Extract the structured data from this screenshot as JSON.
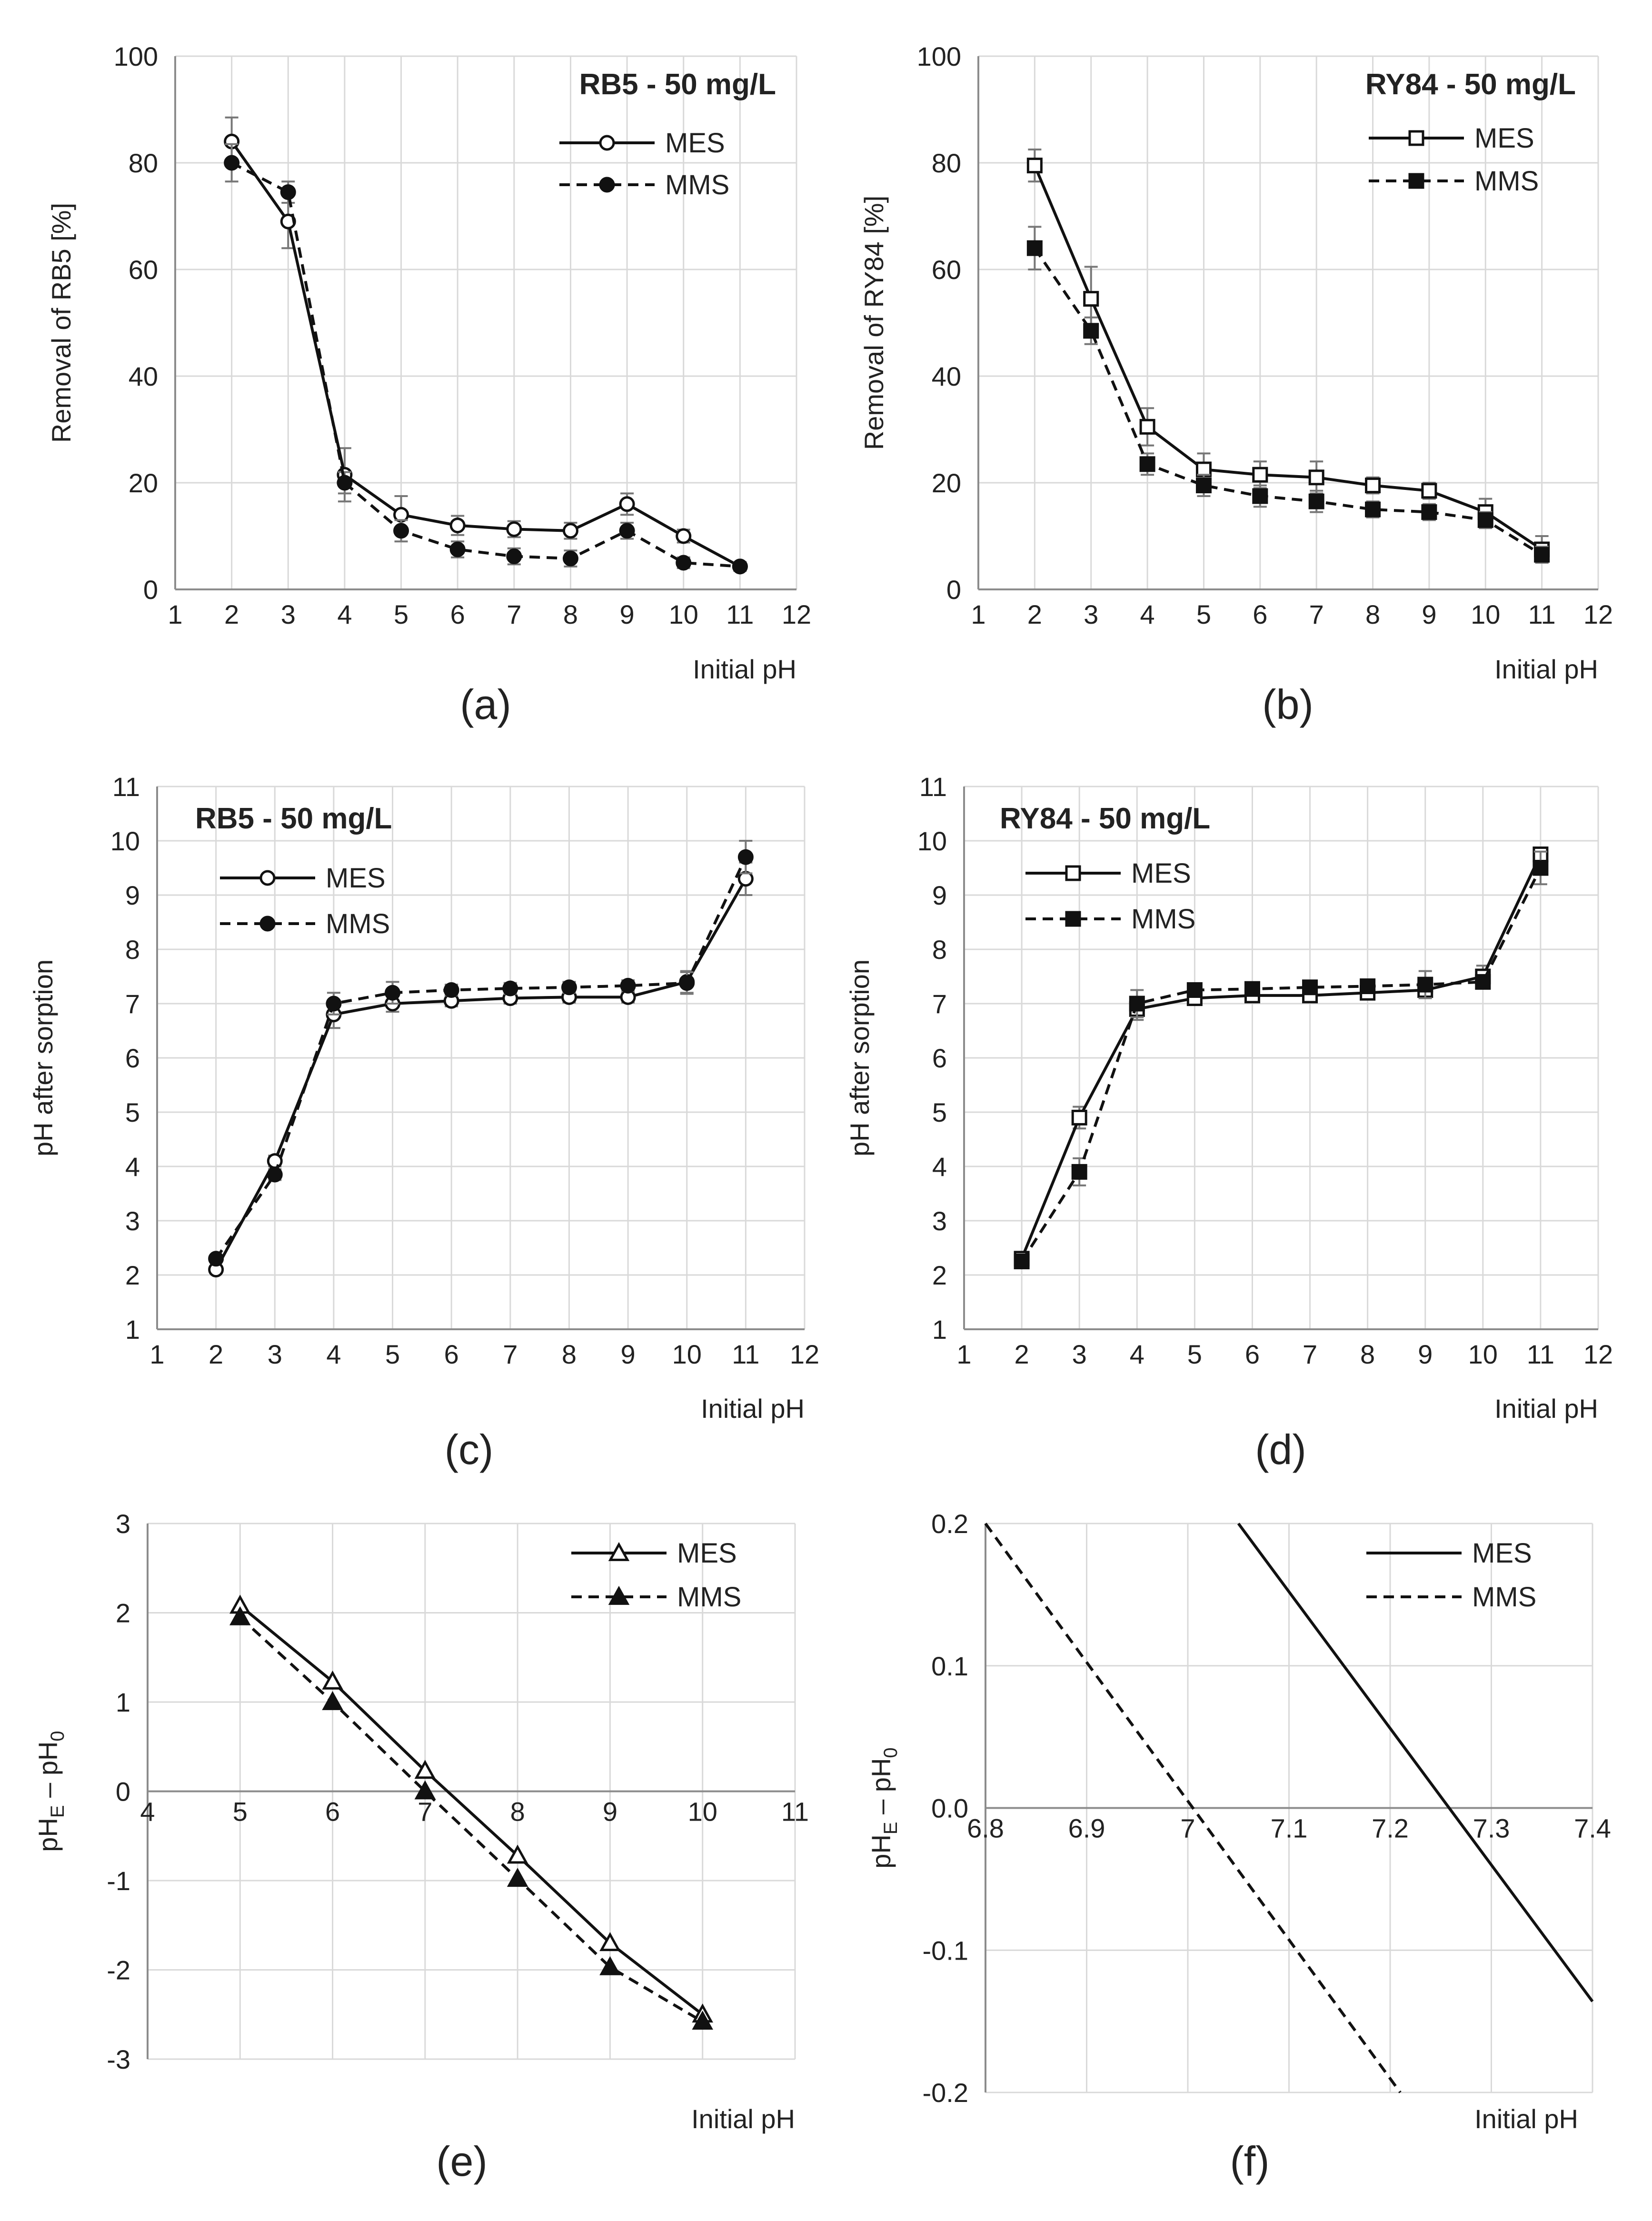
{
  "chart_data": [
    {
      "type": "line",
      "panel_label": "(a)",
      "title": "RB5 - 50 mg/L",
      "xlabel": "Initial pH",
      "ylabel": "Removal of RB5 [%]",
      "xlim": [
        1,
        12
      ],
      "ylim": [
        0,
        100
      ],
      "xticks": [
        "1",
        "2",
        "3",
        "4",
        "5",
        "6",
        "7",
        "8",
        "9",
        "10",
        "11",
        "12"
      ],
      "yticks": [
        "0",
        "20",
        "40",
        "60",
        "80",
        "100"
      ],
      "x": [
        2,
        3,
        4,
        5,
        6,
        7,
        8,
        9,
        10,
        11
      ],
      "series": [
        {
          "name": "MES",
          "marker": "circle-open",
          "dash": "solid",
          "values": [
            84.0,
            69.0,
            21.5,
            14.0,
            12.0,
            11.3,
            11.0,
            16.0,
            10.0,
            4.3
          ],
          "errors": [
            4.5,
            5.0,
            5.0,
            3.5,
            1.8,
            1.5,
            1.5,
            2.0,
            1.2,
            0.8
          ]
        },
        {
          "name": "MMS",
          "marker": "circle-filled",
          "dash": "dashed",
          "values": [
            80.0,
            74.5,
            20.0,
            11.0,
            7.5,
            6.2,
            5.8,
            11.0,
            5.0,
            4.3
          ],
          "errors": [
            3.5,
            2.0,
            2.0,
            2.0,
            1.5,
            1.5,
            1.5,
            1.5,
            1.0,
            0.8
          ]
        }
      ]
    },
    {
      "type": "line",
      "panel_label": "(b)",
      "title": "RY84 - 50 mg/L",
      "xlabel": "Initial pH",
      "ylabel": "Removal of RY84 [%]",
      "xlim": [
        1,
        12
      ],
      "ylim": [
        0,
        100
      ],
      "xticks": [
        "1",
        "2",
        "3",
        "4",
        "5",
        "6",
        "7",
        "8",
        "9",
        "10",
        "11",
        "12"
      ],
      "yticks": [
        "0",
        "20",
        "40",
        "60",
        "80",
        "100"
      ],
      "x": [
        2,
        3,
        4,
        5,
        6,
        7,
        8,
        9,
        10,
        11
      ],
      "series": [
        {
          "name": "MES",
          "marker": "square-open",
          "dash": "solid",
          "values": [
            79.5,
            54.5,
            30.5,
            22.5,
            21.5,
            21.0,
            19.5,
            18.5,
            14.5,
            7.5
          ],
          "errors": [
            3.0,
            6.0,
            3.5,
            3.0,
            2.5,
            3.0,
            1.5,
            1.5,
            2.5,
            2.5
          ]
        },
        {
          "name": "MMS",
          "marker": "square-filled",
          "dash": "dashed",
          "values": [
            64.0,
            48.5,
            23.5,
            19.5,
            17.5,
            16.5,
            15.0,
            14.5,
            13.0,
            6.5
          ],
          "errors": [
            4.0,
            2.5,
            2.0,
            2.0,
            2.0,
            2.0,
            1.5,
            1.5,
            1.5,
            1.5
          ]
        }
      ]
    },
    {
      "type": "line",
      "panel_label": "(c)",
      "title": "RB5 - 50 mg/L",
      "xlabel": "Initial pH",
      "ylabel": "pH after sorption",
      "xlim": [
        1,
        12
      ],
      "ylim": [
        1,
        11
      ],
      "xticks": [
        "1",
        "2",
        "3",
        "4",
        "5",
        "6",
        "7",
        "8",
        "9",
        "10",
        "11",
        "12"
      ],
      "yticks": [
        "1",
        "2",
        "3",
        "4",
        "5",
        "6",
        "7",
        "8",
        "9",
        "10",
        "11"
      ],
      "x": [
        2,
        3,
        4,
        5,
        6,
        7,
        8,
        9,
        10,
        11
      ],
      "series": [
        {
          "name": "MES",
          "marker": "circle-open",
          "dash": "solid",
          "values": [
            2.1,
            4.1,
            6.8,
            7.0,
            7.05,
            7.1,
            7.12,
            7.12,
            7.4,
            9.3
          ],
          "errors": [
            0.05,
            0.1,
            0.25,
            0.15,
            0.1,
            0.1,
            0.1,
            0.1,
            0.2,
            0.3
          ]
        },
        {
          "name": "MMS",
          "marker": "circle-filled",
          "dash": "dashed",
          "values": [
            2.3,
            3.85,
            7.0,
            7.2,
            7.25,
            7.28,
            7.3,
            7.33,
            7.38,
            9.7
          ],
          "errors": [
            0.05,
            0.1,
            0.2,
            0.2,
            0.1,
            0.1,
            0.1,
            0.1,
            0.2,
            0.3
          ]
        }
      ]
    },
    {
      "type": "line",
      "panel_label": "(d)",
      "title": "RY84 - 50 mg/L",
      "xlabel": "Initial pH",
      "ylabel": "pH after sorption",
      "xlim": [
        1,
        12
      ],
      "ylim": [
        1,
        11
      ],
      "xticks": [
        "1",
        "2",
        "3",
        "4",
        "5",
        "6",
        "7",
        "8",
        "9",
        "10",
        "11",
        "12"
      ],
      "yticks": [
        "1",
        "2",
        "3",
        "4",
        "5",
        "6",
        "7",
        "8",
        "9",
        "10",
        "11"
      ],
      "x": [
        2,
        3,
        4,
        5,
        6,
        7,
        8,
        9,
        10,
        11
      ],
      "series": [
        {
          "name": "MES",
          "marker": "square-open",
          "dash": "solid",
          "values": [
            2.3,
            4.9,
            6.9,
            7.1,
            7.15,
            7.15,
            7.2,
            7.25,
            7.5,
            9.75
          ],
          "errors": [
            0.05,
            0.2,
            0.2,
            0.1,
            0.1,
            0.1,
            0.1,
            0.1,
            0.2,
            0.1
          ]
        },
        {
          "name": "MMS",
          "marker": "square-filled",
          "dash": "dashed",
          "values": [
            2.25,
            3.9,
            7.0,
            7.25,
            7.27,
            7.3,
            7.32,
            7.35,
            7.4,
            9.5
          ],
          "errors": [
            0.05,
            0.25,
            0.25,
            0.1,
            0.1,
            0.1,
            0.1,
            0.25,
            0.1,
            0.3
          ]
        }
      ]
    },
    {
      "type": "line",
      "panel_label": "(e)",
      "title": "",
      "xlabel": "Initial pH",
      "ylabel_main": "pH",
      "ylabel_sub1": "E",
      "ylabel_mid": " – pH",
      "ylabel_sub2": "0",
      "xlim": [
        4,
        11
      ],
      "ylim": [
        -3,
        3
      ],
      "xticks": [
        "4",
        "5",
        "6",
        "7",
        "8",
        "9",
        "10",
        "11"
      ],
      "yticks": [
        "-3",
        "-2",
        "-1",
        "0",
        "1",
        "2",
        "3"
      ],
      "x": [
        5,
        6,
        7,
        8,
        9,
        10
      ],
      "series": [
        {
          "name": "MES",
          "marker": "triangle-open",
          "dash": "solid",
          "values": [
            2.08,
            1.23,
            0.23,
            -0.72,
            -1.7,
            -2.5
          ]
        },
        {
          "name": "MMS",
          "marker": "triangle-filled",
          "dash": "dashed",
          "values": [
            1.95,
            1.0,
            0.0,
            -0.98,
            -1.97,
            -2.58
          ]
        }
      ]
    },
    {
      "type": "line",
      "panel_label": "(f)",
      "title": "",
      "xlabel": "Initial pH",
      "ylabel_main": "pH",
      "ylabel_sub1": "E",
      "ylabel_mid": " – pH",
      "ylabel_sub2": "0",
      "xlim": [
        6.8,
        7.4
      ],
      "ylim": [
        -0.2,
        0.2
      ],
      "xticks": [
        "6.8",
        "6.9",
        "7",
        "7.1",
        "7.2",
        "7.3",
        "7.4"
      ],
      "yticks": [
        "-0.2",
        "-0.1",
        "0.0",
        "0.1",
        "0.2"
      ],
      "series": [
        {
          "name": "MES",
          "marker": "none",
          "dash": "solid",
          "x": [
            7.05,
            7.4
          ],
          "values": [
            0.2,
            -0.136
          ]
        },
        {
          "name": "MMS",
          "marker": "none",
          "dash": "dashed",
          "x": [
            6.8,
            7.21
          ],
          "values": [
            0.2,
            -0.2
          ]
        }
      ]
    }
  ]
}
